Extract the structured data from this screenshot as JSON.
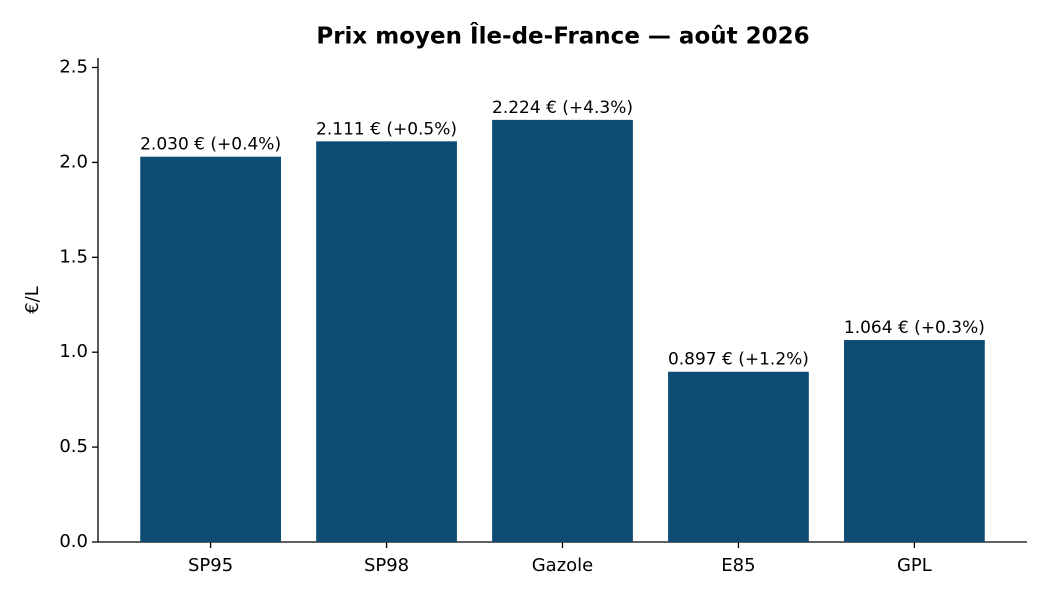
{
  "chart_data": {
    "type": "bar",
    "title": "Prix moyen Île-de-France — août 2026",
    "ylabel": "€/L",
    "categories": [
      "SP95",
      "SP98",
      "Gazole",
      "E85",
      "GPL"
    ],
    "values": [
      2.03,
      2.111,
      2.224,
      0.897,
      1.064
    ],
    "value_labels": [
      "2.030 € (+0.4%)",
      "2.111 € (+0.5%)",
      "2.224 € (+4.3%)",
      "0.897 € (+1.2%)",
      "1.064 € (+0.3%)"
    ],
    "color": "#0f4c75",
    "ylim": [
      0,
      2.55
    ],
    "yticks": [
      {
        "value": 0,
        "label": "0.0"
      },
      0.5,
      {
        "value": 1,
        "label": "1.0"
      },
      1.5,
      {
        "value": 2,
        "label": "2.0"
      },
      2.5
    ],
    "grid": false
  }
}
